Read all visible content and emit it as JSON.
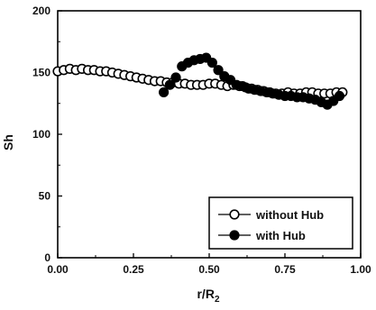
{
  "chart_data": {
    "type": "scatter",
    "xlabel": "r/R",
    "xlabel_sub": "2",
    "ylabel": "Sh",
    "xlim": [
      0.0,
      1.0
    ],
    "ylim": [
      0,
      200
    ],
    "xticks": [
      0.0,
      0.25,
      0.5,
      0.75,
      1.0
    ],
    "xtick_labels": [
      "0.00",
      "0.25",
      "0.50",
      "0.75",
      "1.00"
    ],
    "yticks": [
      0,
      50,
      100,
      150,
      200
    ],
    "ytick_labels": [
      "0",
      "50",
      "100",
      "150",
      "200"
    ],
    "grid": false,
    "legend_position": "bottom-right",
    "series": [
      {
        "name": "without Hub",
        "marker": "open-circle",
        "color": "#000000",
        "x": [
          0.0,
          0.02,
          0.04,
          0.06,
          0.08,
          0.1,
          0.12,
          0.14,
          0.16,
          0.18,
          0.2,
          0.22,
          0.24,
          0.26,
          0.28,
          0.3,
          0.32,
          0.34,
          0.36,
          0.38,
          0.4,
          0.42,
          0.44,
          0.46,
          0.48,
          0.5,
          0.52,
          0.54,
          0.56,
          0.58,
          0.6,
          0.62,
          0.64,
          0.66,
          0.68,
          0.7,
          0.72,
          0.74,
          0.76,
          0.78,
          0.8,
          0.82,
          0.84,
          0.86,
          0.88,
          0.9,
          0.92,
          0.94
        ],
        "y": [
          151,
          152,
          153,
          152,
          153,
          152,
          152,
          151,
          151,
          150,
          149,
          148,
          147,
          146,
          145,
          144,
          143,
          143,
          142,
          142,
          141,
          141,
          140,
          140,
          140,
          141,
          141,
          140,
          139,
          140,
          139,
          138,
          137,
          136,
          135,
          134,
          133,
          133,
          134,
          133,
          133,
          134,
          134,
          133,
          133,
          133,
          134,
          134
        ]
      },
      {
        "name": "with Hub",
        "marker": "filled-circle",
        "color": "#000000",
        "x": [
          0.35,
          0.37,
          0.39,
          0.41,
          0.43,
          0.45,
          0.47,
          0.49,
          0.51,
          0.53,
          0.55,
          0.57,
          0.59,
          0.61,
          0.63,
          0.65,
          0.67,
          0.69,
          0.71,
          0.73,
          0.75,
          0.77,
          0.79,
          0.81,
          0.83,
          0.85,
          0.87,
          0.89,
          0.91,
          0.93
        ],
        "y": [
          134,
          140,
          146,
          155,
          158,
          160,
          161,
          162,
          158,
          152,
          147,
          144,
          140,
          139,
          137,
          136,
          135,
          134,
          133,
          132,
          131,
          131,
          130,
          130,
          129,
          128,
          126,
          124,
          127,
          131
        ]
      }
    ]
  }
}
